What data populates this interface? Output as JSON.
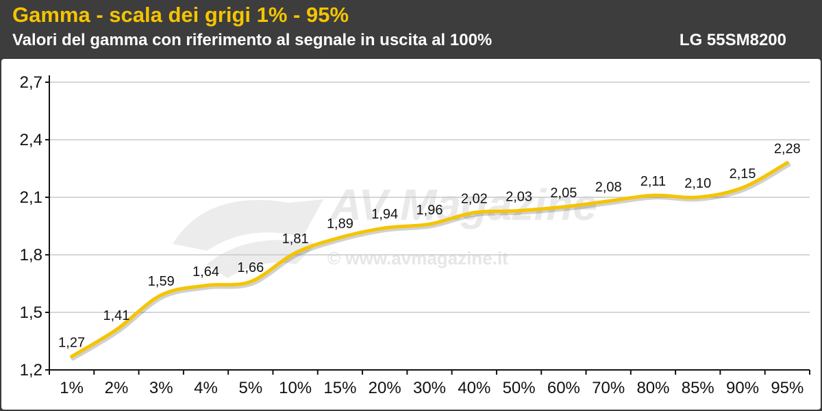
{
  "header": {
    "title": "Gamma - scala dei grigi 1% - 95%",
    "subtitle": "Valori del gamma con riferimento al segnale in uscita al 100%",
    "model": "LG 55SM8200"
  },
  "watermark": {
    "logo_text": "AV Magazine",
    "url": "© www.avmagazine.it"
  },
  "chart_data": {
    "type": "line",
    "title": "Gamma - scala dei grigi 1% - 95%",
    "subtitle": "Valori del gamma con riferimento al segnale in uscita al 100%",
    "xlabel": "",
    "ylabel": "",
    "categories": [
      "1%",
      "2%",
      "3%",
      "4%",
      "5%",
      "10%",
      "15%",
      "20%",
      "30%",
      "40%",
      "50%",
      "60%",
      "70%",
      "80%",
      "85%",
      "90%",
      "95%"
    ],
    "series": [
      {
        "name": "LG 55SM8200",
        "values": [
          1.27,
          1.41,
          1.59,
          1.64,
          1.66,
          1.81,
          1.89,
          1.94,
          1.96,
          2.02,
          2.03,
          2.05,
          2.08,
          2.11,
          2.1,
          2.15,
          2.28
        ],
        "labels": [
          "1,27",
          "1,41",
          "1,59",
          "1,64",
          "1,66",
          "1,81",
          "1,89",
          "1,94",
          "1,96",
          "2,02",
          "2,03",
          "2,05",
          "2,08",
          "2,11",
          "2,10",
          "2,15",
          "2,28"
        ]
      }
    ],
    "yticks": [
      "1,2",
      "1,5",
      "1,8",
      "2,1",
      "2,4",
      "2,7"
    ],
    "ytick_values": [
      1.2,
      1.5,
      1.8,
      2.1,
      2.4,
      2.7
    ],
    "ylim": [
      1.2,
      2.7
    ],
    "grid": true,
    "legend": "none",
    "line_color": "#f5c400",
    "grid_color": "#c8c8c8"
  }
}
